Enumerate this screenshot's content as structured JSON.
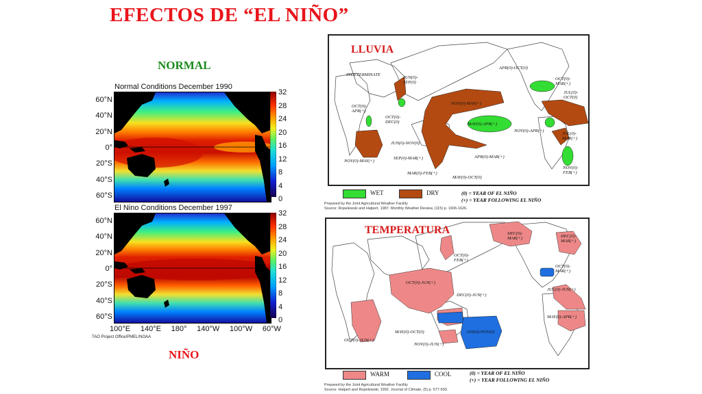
{
  "title": "EFECTOS DE “EL NIÑO”",
  "left": {
    "normal_label": "NORMAL",
    "nino_label": "NIÑO",
    "normal_map": {
      "title": "Normal Conditions December 1990",
      "lat_labels": [
        "60°N",
        "40°N",
        "20°N",
        "0°",
        "20°S",
        "40°S",
        "60°S"
      ],
      "colorbar_ticks": [
        "32",
        "28",
        "24",
        "20",
        "16",
        "12",
        "8",
        "4",
        "0"
      ]
    },
    "nino_map": {
      "title": "El Nino Conditions December 1997",
      "lat_labels": [
        "60°N",
        "40°N",
        "20°N",
        "0°",
        "20°S",
        "40°S",
        "60°S"
      ],
      "colorbar_ticks": [
        "32",
        "28",
        "24",
        "20",
        "16",
        "12",
        "8",
        "4",
        "0"
      ]
    },
    "lon_labels": [
      "100°E",
      "140°E",
      "180°",
      "140°W",
      "100°W",
      "60°W"
    ],
    "credit": "TAO Project Office/PMEL/NOAA"
  },
  "rain_panel": {
    "title": "LLUVIA",
    "annotations": [
      "INDETERMINATE",
      "JUN(0)-SEP(0)",
      "APR(0)-OCT(0)",
      "OCT(0)-MAR(+)",
      "JUL(0)-OCT(0)",
      "OCT(0)-APR(+)",
      "OCT(0)-DEC(0)",
      "NOV(0)-MAY(+)",
      "MAY(0)-APR(+)",
      "NOV(0)-APR(+)",
      "JUL(0)-MAR(+)",
      "JUN(0)-NOV(0)",
      "NOV(0)-MAY(+)",
      "SEP(0)-MAR(+)",
      "APR(0)-MAR(+)",
      "MAR(0)-FEB(+)",
      "MAY(0)-OCT(0)",
      "NOV(0)-FEB(+)"
    ],
    "legend": {
      "wet": "WET",
      "dry": "DRY"
    },
    "notes": [
      "(0) = YEAR OF EL NIÑO",
      "(+) = YEAR FOLLOWING EL NIÑO"
    ],
    "prepared": [
      "Prepared by the Joint Agricultural Weather Facility",
      "Source: Ropelewski and Halpert, 1987. Monthly Weather Review, (115) p. 1606-1626."
    ],
    "colors": {
      "wet": "#33dd33",
      "dry": "#b34a12"
    }
  },
  "temp_panel": {
    "title": "TEMPERATURA",
    "annotations": [
      "DEC(0)-MAR(+)",
      "DEC(0)-MAR(+)",
      "OCT(0)-FEB(+)",
      "OCT(0)-MAR(+)",
      "OCT(0)-JUN(+)",
      "DEC(0)-JUN(+)",
      "JUL(0)-JUN(+)",
      "MAY(0)-APR(+)",
      "MAY(0)-OCT(0)",
      "JAN(0)-NOV(0)",
      "NOV(0)-JUN(+)",
      "OCT(0)-JUN(+)"
    ],
    "legend": {
      "warm": "WARM",
      "cool": "COOL"
    },
    "notes": [
      "(0) = YEAR OF EL NIÑO",
      "(+) = YEAR FOLLOWING EL NIÑO"
    ],
    "prepared": [
      "Prepared by the Joint Agricultural Weather Facility",
      "Source: Halpert and Ropelewski, 1992. Journal of Climate, (5) p. 577-593."
    ],
    "colors": {
      "warm": "#ee8888",
      "cool": "#1f6fe0"
    }
  }
}
